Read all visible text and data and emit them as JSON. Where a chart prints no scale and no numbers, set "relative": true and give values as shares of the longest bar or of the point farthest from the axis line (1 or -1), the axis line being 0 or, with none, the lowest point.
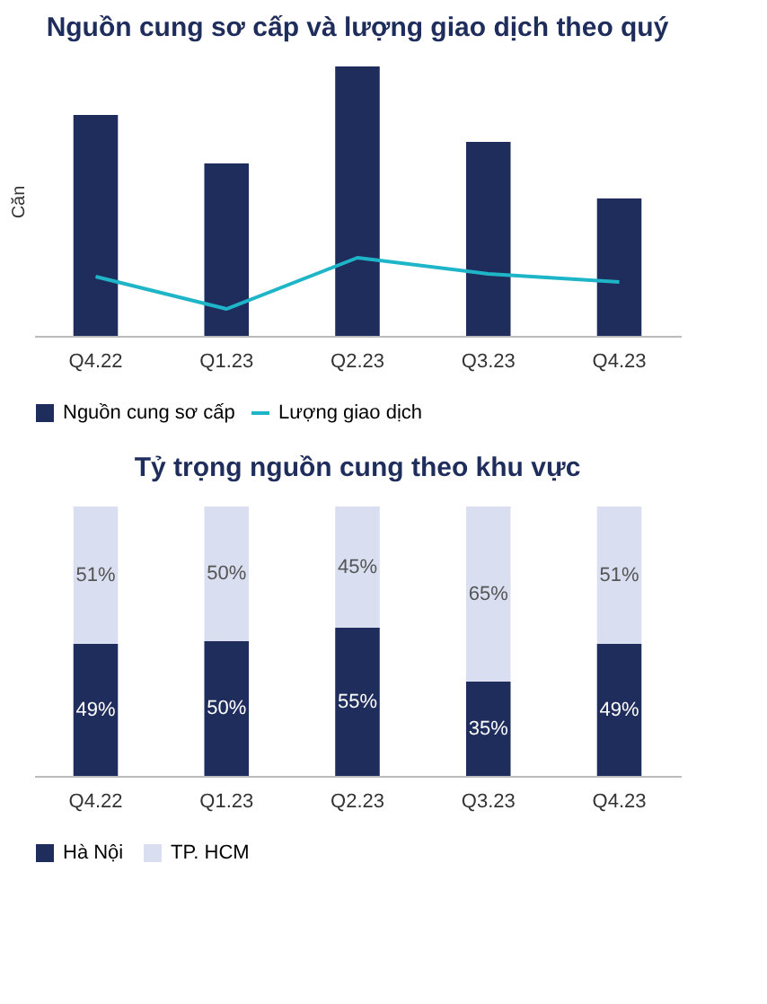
{
  "chart_data": [
    {
      "type": "bar",
      "title": "Nguồn cung sơ cấp và lượng giao dịch theo quý",
      "ylabel": "Căn",
      "relative": true,
      "legend": "bottom",
      "categories": [
        "Q4.22",
        "Q1.23",
        "Q2.23",
        "Q3.23",
        "Q4.23"
      ],
      "series": [
        {
          "name": "Nguồn cung sơ cấp",
          "type": "bar",
          "color": "#1f2d5c",
          "values": [
            0.82,
            0.64,
            1.0,
            0.72,
            0.51
          ]
        },
        {
          "name": "Lượng giao dịch",
          "type": "line",
          "color": "#1fb5c8",
          "values": [
            0.22,
            0.1,
            0.29,
            0.23,
            0.2
          ]
        }
      ]
    },
    {
      "type": "bar",
      "title": "Tỷ trọng nguồn cung theo khu vực",
      "stacked": true,
      "legend": "bottom",
      "categories": [
        "Q4.22",
        "Q1.23",
        "Q2.23",
        "Q3.23",
        "Q4.23"
      ],
      "series": [
        {
          "name": "Hà Nội",
          "color": "#1f2d5c",
          "values": [
            49,
            50,
            55,
            35,
            49
          ],
          "value_labels": [
            "49%",
            "50%",
            "55%",
            "35%",
            "49%"
          ]
        },
        {
          "name": "TP. HCM",
          "color": "#d9dff0",
          "values": [
            51,
            50,
            45,
            65,
            51
          ],
          "value_labels": [
            "51%",
            "50%",
            "45%",
            "65%",
            "51%"
          ]
        }
      ]
    }
  ]
}
